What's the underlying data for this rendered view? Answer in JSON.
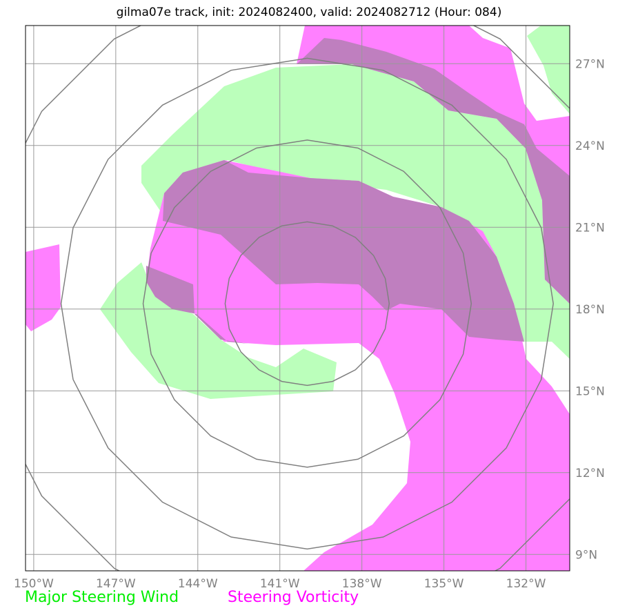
{
  "title": "gilma07e track, init: 2024082400, valid: 2024082712 (Hour: 084)",
  "map": {
    "lon_range": [
      -150.3,
      -130.4
    ],
    "lat_range": [
      8.4,
      28.4
    ],
    "lon_ticks": [
      -150,
      -147,
      -144,
      -141,
      -138,
      -135,
      -132
    ],
    "lat_ticks": [
      9,
      12,
      15,
      18,
      21,
      24,
      27
    ],
    "lon_labels": [
      "150°W",
      "147°W",
      "144°W",
      "141°W",
      "138°W",
      "135°W",
      "132°W"
    ],
    "lat_labels": [
      "9°N",
      "12°N",
      "15°N",
      "18°N",
      "21°N",
      "24°N",
      "27°N"
    ],
    "grid": true,
    "range_rings": {
      "center": [
        -140.0,
        18.2
      ],
      "radii_deg": [
        3,
        6,
        9,
        12
      ]
    }
  },
  "layers": {
    "major_steering_wind": {
      "label": "Major Steering Wind",
      "color": "#00ee00",
      "fill": "#bbffbb"
    },
    "steering_vorticity": {
      "label": "Steering Vorticity",
      "color": "#ff00ff",
      "fill": "#ff80ff"
    },
    "overlap_fill": "#bf7fbf",
    "ring_color": "#808080",
    "grid_color": "#999999"
  }
}
